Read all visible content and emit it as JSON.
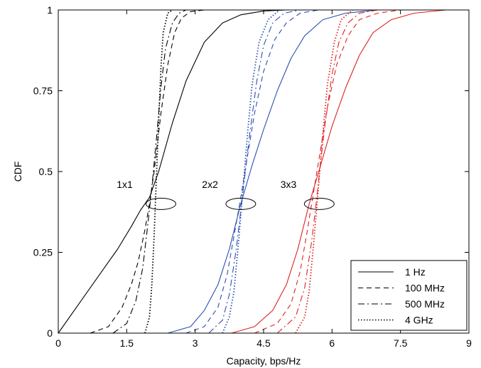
{
  "chart_data": {
    "type": "line",
    "title": "",
    "xlabel": "Capacity, bps/Hz",
    "ylabel": "CDF",
    "xlim": [
      0,
      9
    ],
    "ylim": [
      0,
      1
    ],
    "xticks": [
      0,
      1.5,
      3,
      4.5,
      6,
      7.5,
      9
    ],
    "xtick_labels": [
      "0",
      "1.5",
      "3",
      "4.5",
      "6",
      "7.5",
      "9"
    ],
    "yticks": [
      0,
      0.25,
      0.5,
      0.75,
      1
    ],
    "ytick_labels": [
      "0",
      "0.25",
      "0.5",
      "0.75",
      "1"
    ],
    "grid": false,
    "legend_position": "bottom-right",
    "legend": [
      {
        "label": "1 Hz",
        "style": "solid"
      },
      {
        "label": "100 MHz",
        "style": "dashed"
      },
      {
        "label": "500 MHz",
        "style": "dashdot"
      },
      {
        "label": "4 GHz",
        "style": "dotted"
      }
    ],
    "annotations": [
      "1x1",
      "2x2",
      "3x3"
    ],
    "colors": {
      "1x1": "#000000",
      "2x2": "#2a4fb0",
      "3x3": "#e02020"
    },
    "series": [
      {
        "group": "1x1",
        "style": "solid",
        "x": [
          0,
          0.5,
          1.0,
          1.3,
          1.6,
          1.8,
          2.0,
          2.2,
          2.5,
          2.8,
          3.2,
          3.6,
          4.0,
          4.5,
          5.0
        ],
        "y": [
          0,
          0.1,
          0.2,
          0.26,
          0.33,
          0.38,
          0.42,
          0.5,
          0.65,
          0.78,
          0.9,
          0.96,
          0.985,
          0.997,
          1
        ]
      },
      {
        "group": "1x1",
        "style": "dashed",
        "x": [
          0.7,
          1.1,
          1.4,
          1.6,
          1.75,
          1.9,
          2.0,
          2.1,
          2.25,
          2.4,
          2.55,
          2.7,
          2.9,
          3.2
        ],
        "y": [
          0,
          0.02,
          0.08,
          0.15,
          0.22,
          0.32,
          0.4,
          0.5,
          0.68,
          0.83,
          0.93,
          0.975,
          0.995,
          1
        ]
      },
      {
        "group": "1x1",
        "style": "dashdot",
        "x": [
          1.2,
          1.5,
          1.7,
          1.85,
          1.95,
          2.05,
          2.15,
          2.25,
          2.35,
          2.5,
          2.65,
          2.8
        ],
        "y": [
          0,
          0.03,
          0.1,
          0.2,
          0.32,
          0.45,
          0.6,
          0.76,
          0.88,
          0.96,
          0.99,
          1
        ]
      },
      {
        "group": "1x1",
        "style": "dotted",
        "x": [
          1.9,
          2.0,
          2.05,
          2.1,
          2.15,
          2.2,
          2.25,
          2.3,
          2.4,
          2.5
        ],
        "y": [
          0,
          0.05,
          0.15,
          0.3,
          0.48,
          0.66,
          0.82,
          0.93,
          0.99,
          1
        ]
      },
      {
        "group": "2x2",
        "style": "solid",
        "x": [
          2.4,
          2.9,
          3.2,
          3.5,
          3.75,
          4.0,
          4.25,
          4.5,
          4.8,
          5.1,
          5.4,
          5.8,
          6.3,
          7.0
        ],
        "y": [
          0,
          0.02,
          0.07,
          0.15,
          0.26,
          0.4,
          0.52,
          0.63,
          0.75,
          0.85,
          0.92,
          0.97,
          0.99,
          1
        ]
      },
      {
        "group": "2x2",
        "style": "dashed",
        "x": [
          2.8,
          3.2,
          3.5,
          3.7,
          3.85,
          4.0,
          4.15,
          4.3,
          4.5,
          4.75,
          5.0,
          5.3,
          5.7
        ],
        "y": [
          0,
          0.02,
          0.08,
          0.18,
          0.3,
          0.42,
          0.55,
          0.68,
          0.81,
          0.91,
          0.96,
          0.99,
          1
        ]
      },
      {
        "group": "2x2",
        "style": "dashdot",
        "x": [
          3.3,
          3.6,
          3.75,
          3.9,
          4.0,
          4.1,
          4.2,
          4.35,
          4.5,
          4.7,
          4.95,
          5.3
        ],
        "y": [
          0,
          0.04,
          0.12,
          0.26,
          0.38,
          0.5,
          0.62,
          0.78,
          0.89,
          0.96,
          0.99,
          1
        ]
      },
      {
        "group": "2x2",
        "style": "dotted",
        "x": [
          3.6,
          3.75,
          3.85,
          3.95,
          4.05,
          4.15,
          4.25,
          4.4,
          4.6,
          4.85
        ],
        "y": [
          0,
          0.05,
          0.13,
          0.28,
          0.45,
          0.62,
          0.77,
          0.9,
          0.97,
          1
        ]
      },
      {
        "group": "3x3",
        "style": "solid",
        "x": [
          3.8,
          4.3,
          4.7,
          5.0,
          5.25,
          5.5,
          5.75,
          6.0,
          6.3,
          6.6,
          6.9,
          7.3,
          7.8,
          8.5
        ],
        "y": [
          0,
          0.02,
          0.07,
          0.15,
          0.26,
          0.4,
          0.52,
          0.64,
          0.76,
          0.86,
          0.93,
          0.97,
          0.99,
          1
        ]
      },
      {
        "group": "3x3",
        "style": "dashed",
        "x": [
          4.3,
          4.8,
          5.1,
          5.3,
          5.45,
          5.6,
          5.75,
          5.9,
          6.1,
          6.35,
          6.6,
          7.0,
          7.5
        ],
        "y": [
          0,
          0.03,
          0.09,
          0.19,
          0.31,
          0.44,
          0.57,
          0.7,
          0.83,
          0.92,
          0.97,
          0.99,
          1
        ]
      },
      {
        "group": "3x3",
        "style": "dashdot",
        "x": [
          4.8,
          5.2,
          5.4,
          5.55,
          5.65,
          5.75,
          5.85,
          6.0,
          6.15,
          6.35,
          6.6,
          7.0
        ],
        "y": [
          0,
          0.05,
          0.14,
          0.28,
          0.4,
          0.53,
          0.65,
          0.8,
          0.9,
          0.96,
          0.99,
          1
        ]
      },
      {
        "group": "3x3",
        "style": "dotted",
        "x": [
          5.2,
          5.4,
          5.5,
          5.6,
          5.7,
          5.8,
          5.9,
          6.05,
          6.2,
          6.45
        ],
        "y": [
          0,
          0.05,
          0.13,
          0.28,
          0.45,
          0.62,
          0.77,
          0.9,
          0.97,
          1
        ]
      }
    ]
  }
}
